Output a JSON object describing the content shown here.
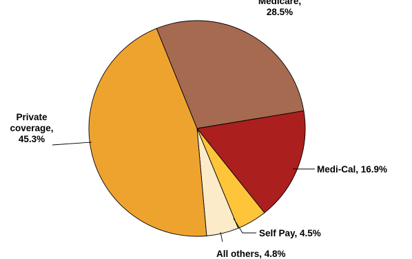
{
  "chart_data": {
    "type": "pie",
    "title": "",
    "slices": [
      {
        "name": "Medicare",
        "value": 28.5,
        "label_lines": [
          "Medicare,",
          "28.5%"
        ],
        "color": "#A66A50"
      },
      {
        "name": "Medi-Cal",
        "value": 16.9,
        "label_lines": [
          "Medi-Cal, 16.9%"
        ],
        "color": "#AB1F1F"
      },
      {
        "name": "Self Pay",
        "value": 4.5,
        "label_lines": [
          "Self Pay, 4.5%"
        ],
        "color": "#FFC53A"
      },
      {
        "name": "All others",
        "value": 4.8,
        "label_lines": [
          "All others, 4.8%"
        ],
        "color": "#FCEBC8"
      },
      {
        "name": "Private coverage",
        "value": 45.3,
        "label_lines": [
          "Private",
          "coverage,",
          "45.3%"
        ],
        "color": "#EFA32F"
      }
    ],
    "start_angle_deg": -22,
    "direction": "clockwise",
    "legend": "none"
  }
}
